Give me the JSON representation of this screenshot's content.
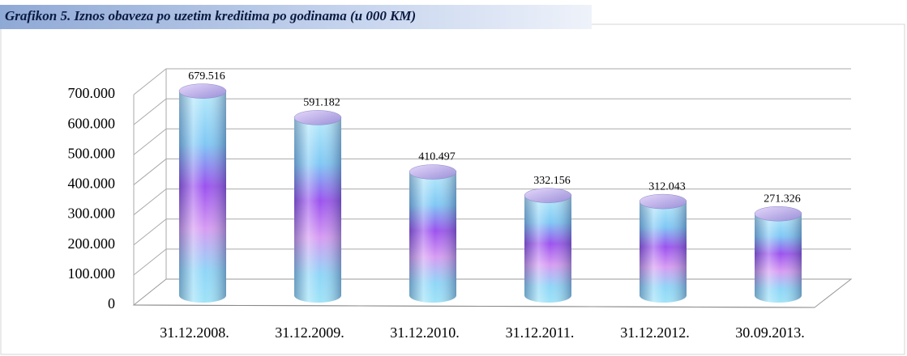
{
  "chart_data": {
    "type": "bar",
    "title": "Grafikon 5. Iznos obaveza po uzetim kreditima po godinama (u 000 KM)",
    "categories": [
      "31.12.2008.",
      "31.12.2009.",
      "31.12.2010.",
      "31.12.2011.",
      "31.12.2012.",
      "30.09.2013."
    ],
    "values": [
      679516,
      591182,
      410497,
      332156,
      312043,
      271326
    ],
    "value_labels": [
      "679.516",
      "591.182",
      "410.497",
      "332.156",
      "312.043",
      "271.326"
    ],
    "ylim": [
      0,
      700000
    ],
    "yticks": [
      0,
      {
        "value": 100000,
        "label": "100.000"
      },
      {
        "value": 200000,
        "label": "200.000"
      },
      {
        "value": 300000,
        "label": "300.000"
      },
      {
        "value": 400000,
        "label": "400.000"
      },
      {
        "value": 500000,
        "label": "500.000"
      },
      {
        "value": 600000,
        "label": "600.000"
      },
      {
        "value": 700000,
        "label": "700.000"
      }
    ],
    "grid": true
  }
}
